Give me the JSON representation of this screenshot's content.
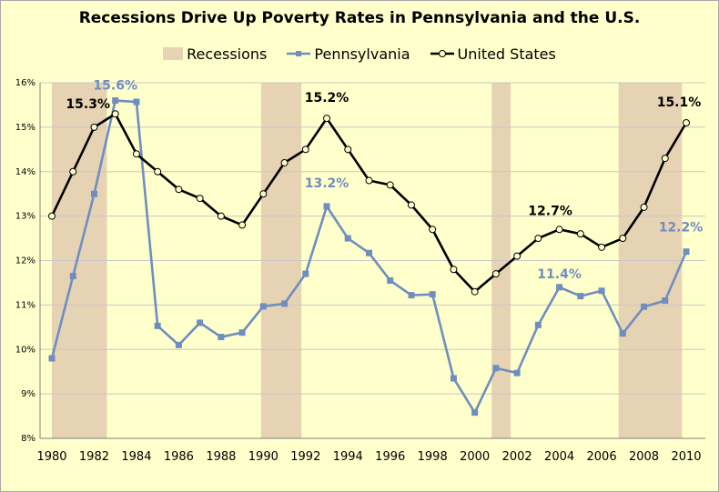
{
  "chart_data": {
    "type": "line",
    "title": "Recessions Drive Up Poverty Rates in Pennsylvania and the U.S.",
    "xlim": [
      1980,
      2010
    ],
    "ylim": [
      8,
      16
    ],
    "y_ticks": [
      8,
      9,
      10,
      11,
      12,
      13,
      14,
      15,
      16
    ],
    "y_tick_labels": [
      "8%",
      "9%",
      "10%",
      "11%",
      "12%",
      "13%",
      "14%",
      "15%",
      "16%"
    ],
    "x_ticks": [
      1980,
      1982,
      1984,
      1986,
      1988,
      1990,
      1992,
      1994,
      1996,
      1998,
      2000,
      2002,
      2004,
      2006,
      2008,
      2010
    ],
    "x_tick_labels": [
      "1980",
      "1982",
      "1984",
      "1986",
      "1988",
      "1990",
      "1992",
      "1994",
      "1996",
      "1998",
      "2000",
      "2002",
      "2004",
      "2006",
      "2008",
      "2010"
    ],
    "grid": "horizontal",
    "legend_placement": "top-center",
    "x": [
      1980,
      1981,
      1982,
      1983,
      1984,
      1985,
      1986,
      1987,
      1988,
      1989,
      1990,
      1991,
      1992,
      1993,
      1994,
      1995,
      1996,
      1997,
      1998,
      1999,
      2000,
      2001,
      2002,
      2003,
      2004,
      2005,
      2006,
      2007,
      2008,
      2009,
      2010
    ],
    "recessions": [
      {
        "start": 1980,
        "end": 1982.6
      },
      {
        "start": 1989.9,
        "end": 1991.8
      },
      {
        "start": 2000.8,
        "end": 2001.7
      },
      {
        "start": 2006.8,
        "end": 2009.8
      }
    ],
    "series": [
      {
        "name": "Pennsylvania",
        "color": "#6f8ebf",
        "marker": "square",
        "values": [
          9.8,
          11.65,
          13.5,
          15.6,
          15.57,
          10.53,
          10.1,
          10.6,
          10.28,
          10.38,
          10.97,
          11.03,
          11.7,
          13.22,
          12.5,
          12.17,
          11.55,
          11.22,
          11.24,
          9.35,
          8.58,
          9.58,
          9.47,
          10.55,
          11.4,
          11.2,
          11.32,
          10.36,
          10.96,
          11.1,
          12.2
        ]
      },
      {
        "name": "United States",
        "color": "#000000",
        "marker": "circle",
        "values": [
          13.0,
          14.0,
          15.0,
          15.3,
          14.4,
          14.0,
          13.6,
          13.4,
          13.0,
          12.8,
          13.5,
          14.2,
          14.5,
          15.2,
          14.5,
          13.8,
          13.7,
          13.25,
          12.7,
          11.8,
          11.3,
          11.7,
          12.1,
          12.5,
          12.7,
          12.6,
          12.3,
          12.5,
          13.2,
          14.3,
          15.1
        ]
      }
    ],
    "legend": [
      "Recessions",
      "Pennsylvania",
      "United States"
    ],
    "annotations": [
      {
        "text": "15.6%",
        "series": "Pennsylvania",
        "year": 1983,
        "value": 15.6
      },
      {
        "text": "15.3%",
        "series": "United States",
        "year": 1983,
        "value": 15.3
      },
      {
        "text": "13.2%",
        "series": "Pennsylvania",
        "year": 1993,
        "value": 13.2
      },
      {
        "text": "15.2%",
        "series": "United States",
        "year": 1993,
        "value": 15.2
      },
      {
        "text": "11.4%",
        "series": "Pennsylvania",
        "year": 2004,
        "value": 11.4
      },
      {
        "text": "12.7%",
        "series": "United States",
        "year": 2004,
        "value": 12.7
      },
      {
        "text": "12.2%",
        "series": "Pennsylvania",
        "year": 2010,
        "value": 12.2
      },
      {
        "text": "15.1%",
        "series": "United States",
        "year": 2010,
        "value": 15.1
      }
    ]
  }
}
